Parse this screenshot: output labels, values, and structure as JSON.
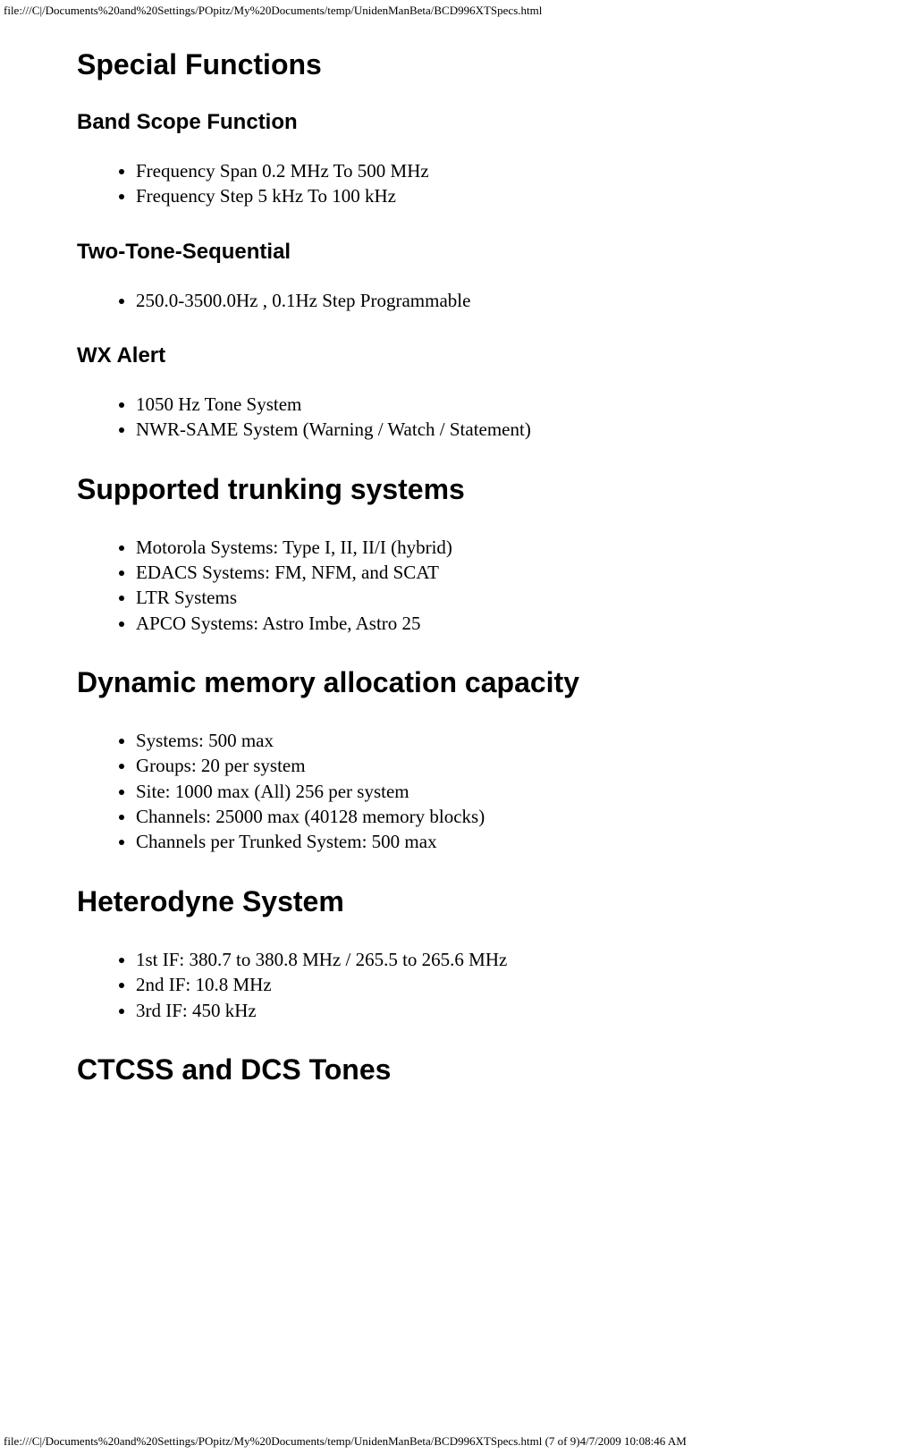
{
  "header": {
    "path": "file:///C|/Documents%20and%20Settings/POpitz/My%20Documents/temp/UnidenManBeta/BCD996XTSpecs.html"
  },
  "sections": {
    "special_functions": {
      "title": "Special Functions",
      "band_scope": {
        "heading": "Band Scope Function",
        "items": [
          "Frequency Span 0.2 MHz To 500 MHz",
          "Frequency Step 5 kHz To 100 kHz"
        ]
      },
      "two_tone": {
        "heading": "Two-Tone-Sequential",
        "items": [
          "250.0-3500.0Hz , 0.1Hz Step Programmable"
        ]
      },
      "wx_alert": {
        "heading": "WX Alert",
        "items": [
          "1050 Hz Tone System",
          "NWR-SAME System (Warning / Watch / Statement)"
        ]
      }
    },
    "trunking": {
      "title": "Supported trunking systems",
      "items": [
        "Motorola Systems: Type I, II, II/I (hybrid)",
        "EDACS Systems: FM, NFM, and SCAT",
        "LTR Systems",
        "APCO Systems: Astro Imbe, Astro 25"
      ]
    },
    "memory": {
      "title": "Dynamic memory allocation capacity",
      "items": [
        "Systems: 500 max",
        "Groups: 20 per system",
        "Site: 1000 max (All) 256 per system",
        "Channels: 25000 max (40128 memory blocks)",
        "Channels per Trunked System: 500 max"
      ]
    },
    "heterodyne": {
      "title": "Heterodyne System",
      "items": [
        "1st IF: 380.7 to 380.8 MHz / 265.5 to 265.6 MHz",
        "2nd IF: 10.8 MHz",
        "3rd IF: 450 kHz"
      ]
    },
    "ctcss": {
      "title": "CTCSS and DCS Tones"
    }
  },
  "footer": {
    "path": "file:///C|/Documents%20and%20Settings/POpitz/My%20Documents/temp/UnidenManBeta/BCD996XTSpecs.html (7 of 9)4/7/2009 10:08:46 AM"
  }
}
